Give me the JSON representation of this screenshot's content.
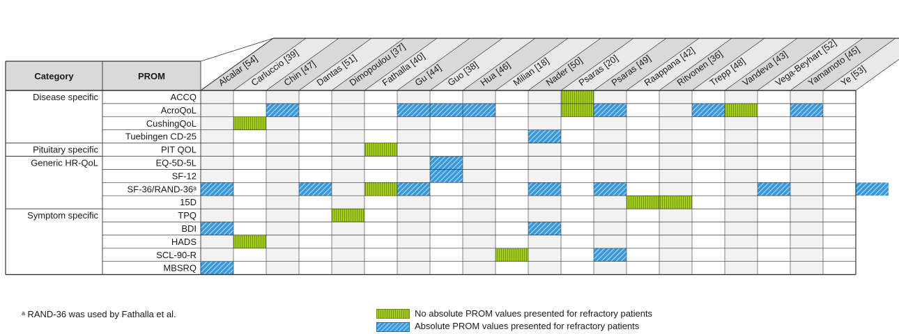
{
  "header": {
    "category_label": "Category",
    "prom_label": "PROM"
  },
  "studies": [
    "Alcalar [54]",
    "Carluccio [39]",
    "Chin [47]",
    "Dantas [51]",
    "Dimopoulou [37]",
    "Fathalla [40]",
    "Gu [44]",
    "Guo [38]",
    "Hua [46]",
    "Milian [18]",
    "Nader [50]",
    "Psaras [20]",
    "Psaras [49]",
    "Raappana [42]",
    "Ritvonen [36]",
    "Trepp [48]",
    "Vandeva [43]",
    "Vega-Beyhart [52]",
    "Yamamoto [45]",
    "Ye [53]"
  ],
  "rows": [
    {
      "category": "Disease specific",
      "prom": "ACCQ"
    },
    {
      "category": "",
      "prom": "AcroQoL"
    },
    {
      "category": "",
      "prom": "CushingQoL"
    },
    {
      "category": "",
      "prom": "Tuebingen CD-25"
    },
    {
      "category": "Pituitary specific",
      "prom": "PIT QOL"
    },
    {
      "category": "Generic HR-QoL",
      "prom": "EQ-5D-5L"
    },
    {
      "category": "",
      "prom": "SF-12"
    },
    {
      "category": "",
      "prom": "SF-36/RAND-36ᵃ"
    },
    {
      "category": "",
      "prom": "15D"
    },
    {
      "category": "Symptom specific",
      "prom": "TPQ"
    },
    {
      "category": "",
      "prom": "BDI"
    },
    {
      "category": "",
      "prom": "HADS"
    },
    {
      "category": "",
      "prom": "SCL-90-R"
    },
    {
      "category": "",
      "prom": "MBSRQ"
    }
  ],
  "marks": [
    {
      "row": 0,
      "col": 10,
      "kind": "green"
    },
    {
      "row": 1,
      "col": 1,
      "kind": "blue"
    },
    {
      "row": 1,
      "col": 5,
      "kind": "blue"
    },
    {
      "row": 1,
      "col": 6,
      "kind": "blue"
    },
    {
      "row": 1,
      "col": 7,
      "kind": "blue"
    },
    {
      "row": 1,
      "col": 10,
      "kind": "green"
    },
    {
      "row": 1,
      "col": 11,
      "kind": "blue"
    },
    {
      "row": 1,
      "col": 14,
      "kind": "blue"
    },
    {
      "row": 1,
      "col": 15,
      "kind": "green"
    },
    {
      "row": 1,
      "col": 17,
      "kind": "blue"
    },
    {
      "row": 2,
      "col": 0,
      "kind": "green"
    },
    {
      "row": 3,
      "col": 9,
      "kind": "blue"
    },
    {
      "row": 4,
      "col": 4,
      "kind": "green"
    },
    {
      "row": 5,
      "col": 6,
      "kind": "blue"
    },
    {
      "row": 6,
      "col": 6,
      "kind": "blue"
    },
    {
      "row": 7,
      "col": -1,
      "kind": "blue"
    },
    {
      "row": 7,
      "col": 2,
      "kind": "blue"
    },
    {
      "row": 7,
      "col": 4,
      "kind": "green"
    },
    {
      "row": 7,
      "col": 5,
      "kind": "blue"
    },
    {
      "row": 7,
      "col": 9,
      "kind": "blue"
    },
    {
      "row": 7,
      "col": 11,
      "kind": "blue"
    },
    {
      "row": 7,
      "col": 16,
      "kind": "blue"
    },
    {
      "row": 7,
      "col": 19,
      "kind": "blue"
    },
    {
      "row": 8,
      "col": 12,
      "kind": "green"
    },
    {
      "row": 8,
      "col": 13,
      "kind": "green"
    },
    {
      "row": 9,
      "col": 3,
      "kind": "green"
    },
    {
      "row": 10,
      "col": -1,
      "kind": "blue"
    },
    {
      "row": 10,
      "col": 9,
      "kind": "blue"
    },
    {
      "row": 11,
      "col": 0,
      "kind": "green"
    },
    {
      "row": 12,
      "col": 8,
      "kind": "green"
    },
    {
      "row": 12,
      "col": 11,
      "kind": "blue"
    },
    {
      "row": 13,
      "col": -1,
      "kind": "blue"
    }
  ],
  "footnote": "ᵃ RAND-36 was used by Fathalla et al.",
  "legend": {
    "green_label": "No absolute PROM values presented for refractory patients",
    "blue_label": "Absolute PROM values presented for refractory patients"
  },
  "colors": {
    "header_fill": "#d9d9d9",
    "shaded_col": "#f2f2f2",
    "green": "#a9cd1c",
    "blue": "#3a97d8"
  }
}
